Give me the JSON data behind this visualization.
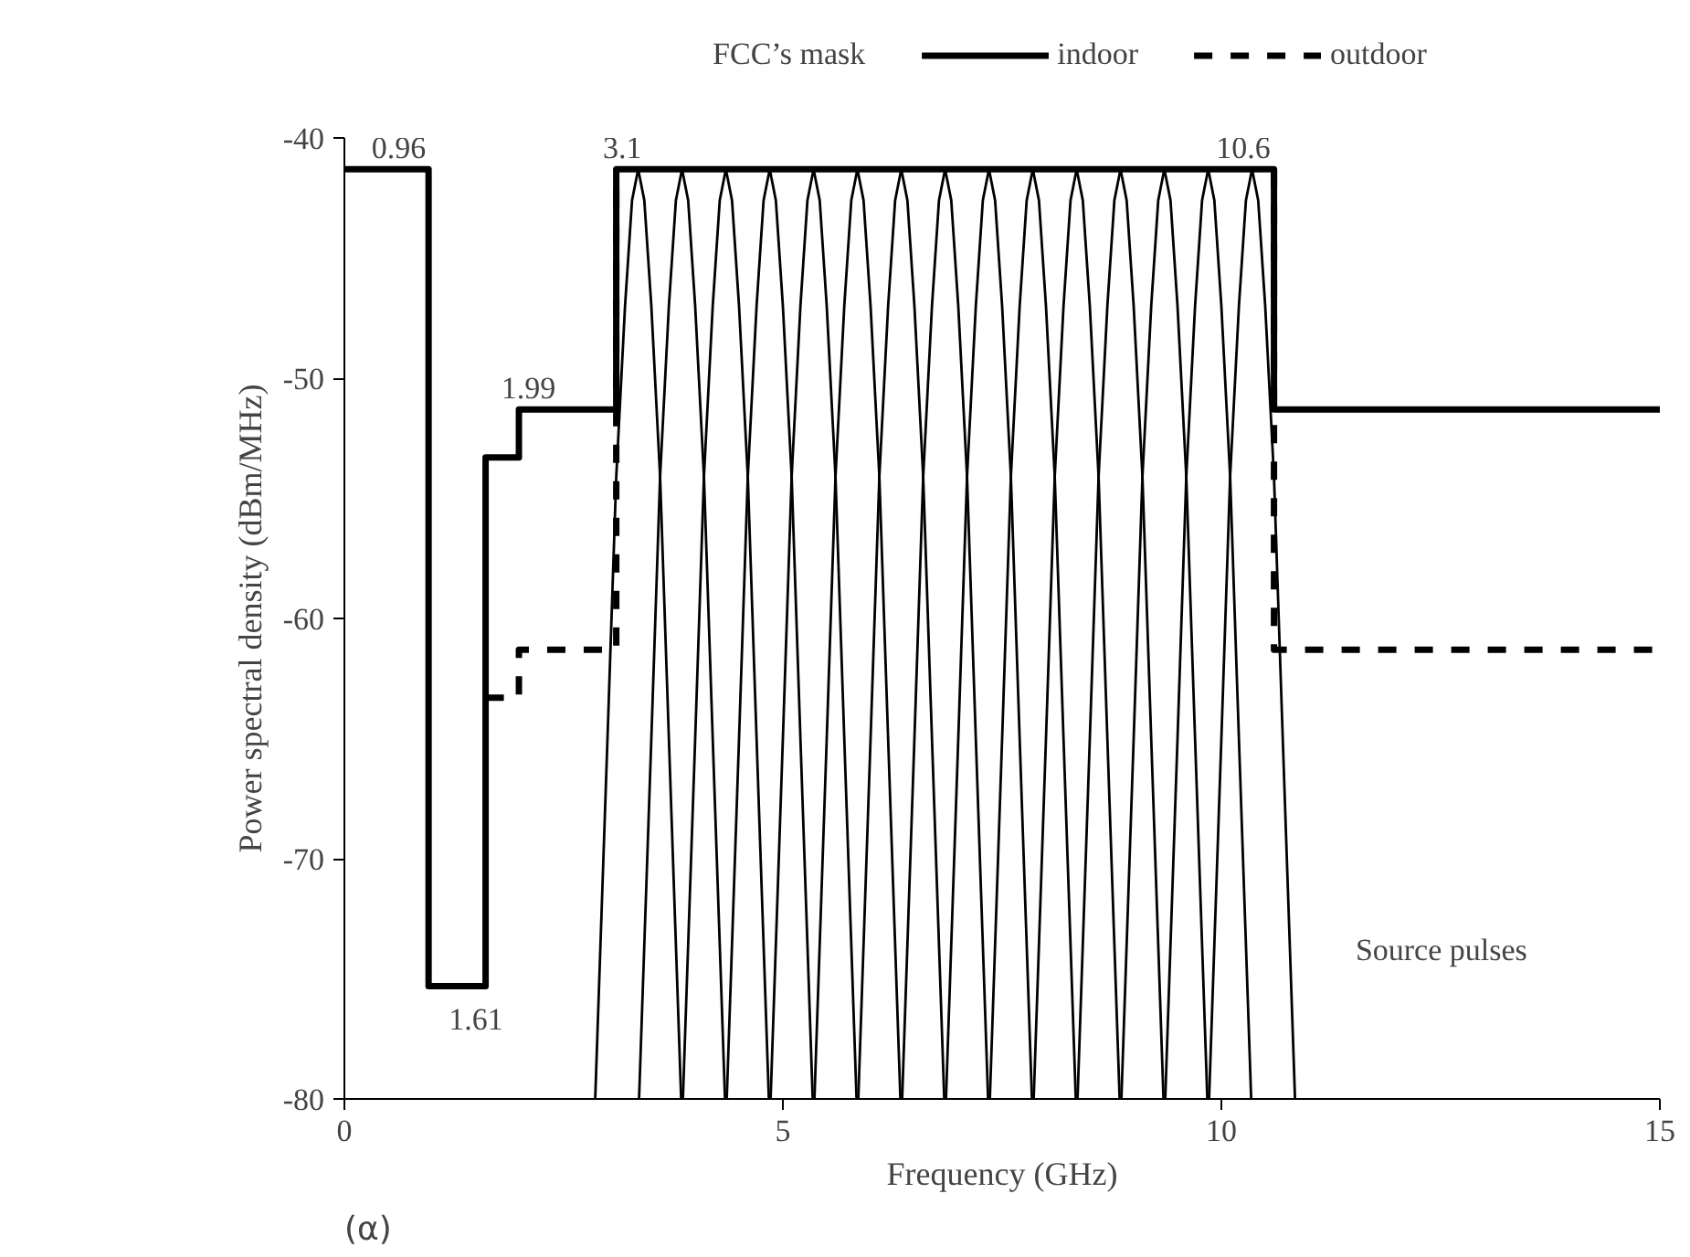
{
  "chart_data": {
    "type": "line",
    "xlabel": "Frequency (GHz)",
    "ylabel": "Power spectral density (dBm/MHz)",
    "legend_title": "FCC’s mask",
    "xlim": [
      0,
      15
    ],
    "xticks": [
      0,
      5,
      10,
      15
    ],
    "ylim": [
      -80,
      -40
    ],
    "yticks": [
      -80,
      -70,
      -60,
      -50,
      -40
    ],
    "grid": false,
    "legend": "top",
    "marker": "none",
    "series": [
      {
        "name": "indoor",
        "color": "#000000",
        "line_style": "solid",
        "x": [
          0,
          0.96,
          0.96,
          1.61,
          1.61,
          1.99,
          1.99,
          3.1,
          3.1,
          10.6,
          10.6,
          15
        ],
        "values": [
          -41.3,
          -41.3,
          -75.3,
          -75.3,
          -53.3,
          -53.3,
          -51.3,
          -51.3,
          -41.3,
          -41.3,
          -51.3,
          -51.3
        ]
      },
      {
        "name": "outdoor",
        "color": "#000000",
        "line_style": "dashed",
        "x": [
          1.61,
          1.99,
          1.99,
          3.1,
          3.1,
          6.85,
          10.6,
          10.6,
          15
        ],
        "values": [
          -63.3,
          -63.3,
          -61.3,
          -61.3,
          -41.3,
          null,
          -41.3,
          -61.3,
          -61.3
        ]
      },
      {
        "color": "#000000",
        "x": [
          2.86,
          3.0,
          3.1,
          3.2,
          3.28,
          3.35,
          3.42,
          3.5,
          3.6,
          3.7,
          3.84
        ],
        "values": [
          -80,
          -65,
          -54.1,
          -47,
          -42.6,
          -41.3,
          -42.6,
          -47,
          -54.1,
          -65,
          -80
        ]
      },
      {
        "color": "#000000",
        "x": [
          3.36,
          3.5,
          3.6,
          3.7,
          3.78,
          3.85,
          3.92,
          4.0,
          4.1,
          4.2,
          4.34
        ],
        "values": [
          -80,
          -65,
          -54.1,
          -47,
          -42.6,
          -41.3,
          -42.6,
          -47,
          -54.1,
          -65,
          -80
        ]
      },
      {
        "color": "#000000",
        "x": [
          3.86,
          4.0,
          4.1,
          4.2,
          4.28,
          4.35,
          4.42,
          4.5,
          4.6,
          4.7,
          4.84
        ],
        "values": [
          -80,
          -65,
          -54.1,
          -47,
          -42.6,
          -41.3,
          -42.6,
          -47,
          -54.1,
          -65,
          -80
        ]
      },
      {
        "color": "#000000",
        "x": [
          4.36,
          4.5,
          4.6,
          4.7,
          4.78,
          4.85,
          4.92,
          5.0,
          5.1,
          5.2,
          5.34
        ],
        "values": [
          -80,
          -65,
          -54.1,
          -47,
          -42.6,
          -41.3,
          -42.6,
          -47,
          -54.1,
          -65,
          -80
        ]
      },
      {
        "color": "#000000",
        "x": [
          4.86,
          5.0,
          5.1,
          5.2,
          5.28,
          5.35,
          5.42,
          5.5,
          5.6,
          5.7,
          5.84
        ],
        "values": [
          -80,
          -65,
          -54.1,
          -47,
          -42.6,
          -41.3,
          -42.6,
          -47,
          -54.1,
          -65,
          -80
        ]
      },
      {
        "color": "#000000",
        "x": [
          5.36,
          5.5,
          5.6,
          5.7,
          5.78,
          5.85,
          5.92,
          6.0,
          6.1,
          6.2,
          6.34
        ],
        "values": [
          -80,
          -65,
          -54.1,
          -47,
          -42.6,
          -41.3,
          -42.6,
          -47,
          -54.1,
          -65,
          -80
        ]
      },
      {
        "color": "#000000",
        "x": [
          5.86,
          6.0,
          6.1,
          6.2,
          6.28,
          6.35,
          6.42,
          6.5,
          6.6,
          6.7,
          6.84
        ],
        "values": [
          -80,
          -65,
          -54.1,
          -47,
          -42.6,
          -41.3,
          -42.6,
          -47,
          -54.1,
          -65,
          -80
        ]
      },
      {
        "color": "#000000",
        "x": [
          6.36,
          6.5,
          6.6,
          6.7,
          6.78,
          6.85,
          6.92,
          7.0,
          7.1,
          7.2,
          7.34
        ],
        "values": [
          -80,
          -65,
          -54.1,
          -47,
          -42.6,
          -41.3,
          -42.6,
          -47,
          -54.1,
          -65,
          -80
        ]
      },
      {
        "color": "#000000",
        "x": [
          6.86,
          7.0,
          7.1,
          7.2,
          7.28,
          7.35,
          7.42,
          7.5,
          7.6,
          7.7,
          7.84
        ],
        "values": [
          -80,
          -65,
          -54.1,
          -47,
          -42.6,
          -41.3,
          -42.6,
          -47,
          -54.1,
          -65,
          -80
        ]
      },
      {
        "color": "#000000",
        "x": [
          7.36,
          7.5,
          7.6,
          7.7,
          7.78,
          7.85,
          7.92,
          8.0,
          8.1,
          8.2,
          8.34
        ],
        "values": [
          -80,
          -65,
          -54.1,
          -47,
          -42.6,
          -41.3,
          -42.6,
          -47,
          -54.1,
          -65,
          -80
        ]
      },
      {
        "color": "#000000",
        "x": [
          7.86,
          8.0,
          8.1,
          8.2,
          8.28,
          8.35,
          8.42,
          8.5,
          8.6,
          8.7,
          8.84
        ],
        "values": [
          -80,
          -65,
          -54.1,
          -47,
          -42.6,
          -41.3,
          -42.6,
          -47,
          -54.1,
          -65,
          -80
        ]
      },
      {
        "color": "#000000",
        "x": [
          8.36,
          8.5,
          8.6,
          8.7,
          8.78,
          8.85,
          8.92,
          9.0,
          9.1,
          9.2,
          9.34
        ],
        "values": [
          -80,
          -65,
          -54.1,
          -47,
          -42.6,
          -41.3,
          -42.6,
          -47,
          -54.1,
          -65,
          -80
        ]
      },
      {
        "color": "#000000",
        "x": [
          8.86,
          9.0,
          9.1,
          9.2,
          9.28,
          9.35,
          9.42,
          9.5,
          9.6,
          9.7,
          9.84
        ],
        "values": [
          -80,
          -65,
          -54.1,
          -47,
          -42.6,
          -41.3,
          -42.6,
          -47,
          -54.1,
          -65,
          -80
        ]
      },
      {
        "color": "#000000",
        "x": [
          9.36,
          9.5,
          9.6,
          9.7,
          9.78,
          9.85,
          9.92,
          10.0,
          10.1,
          10.2,
          10.34
        ],
        "values": [
          -80,
          -65,
          -54.1,
          -47,
          -42.6,
          -41.3,
          -42.6,
          -47,
          -54.1,
          -65,
          -80
        ]
      },
      {
        "color": "#000000",
        "x": [
          9.86,
          10.0,
          10.1,
          10.2,
          10.28,
          10.35,
          10.42,
          10.5,
          10.6,
          10.7,
          10.84
        ],
        "values": [
          -80,
          -65,
          -54.1,
          -47,
          -42.6,
          -41.3,
          -42.6,
          -47,
          -54.1,
          -65,
          -80
        ]
      }
    ],
    "annotations": [
      {
        "text": "0.96",
        "x": 0.62,
        "y": -41.3
      },
      {
        "text": "3.1",
        "x": 3.17,
        "y": -41.3
      },
      {
        "text": "10.6",
        "x": 10.25,
        "y": -41.3
      },
      {
        "text": "1.99",
        "x": 2.1,
        "y": -51.3
      },
      {
        "text": "1.61",
        "x": 1.5,
        "y": -75.3
      },
      {
        "text": "Source pulses",
        "x": 10.78,
        "y": -73.8
      },
      "(α)"
    ]
  }
}
